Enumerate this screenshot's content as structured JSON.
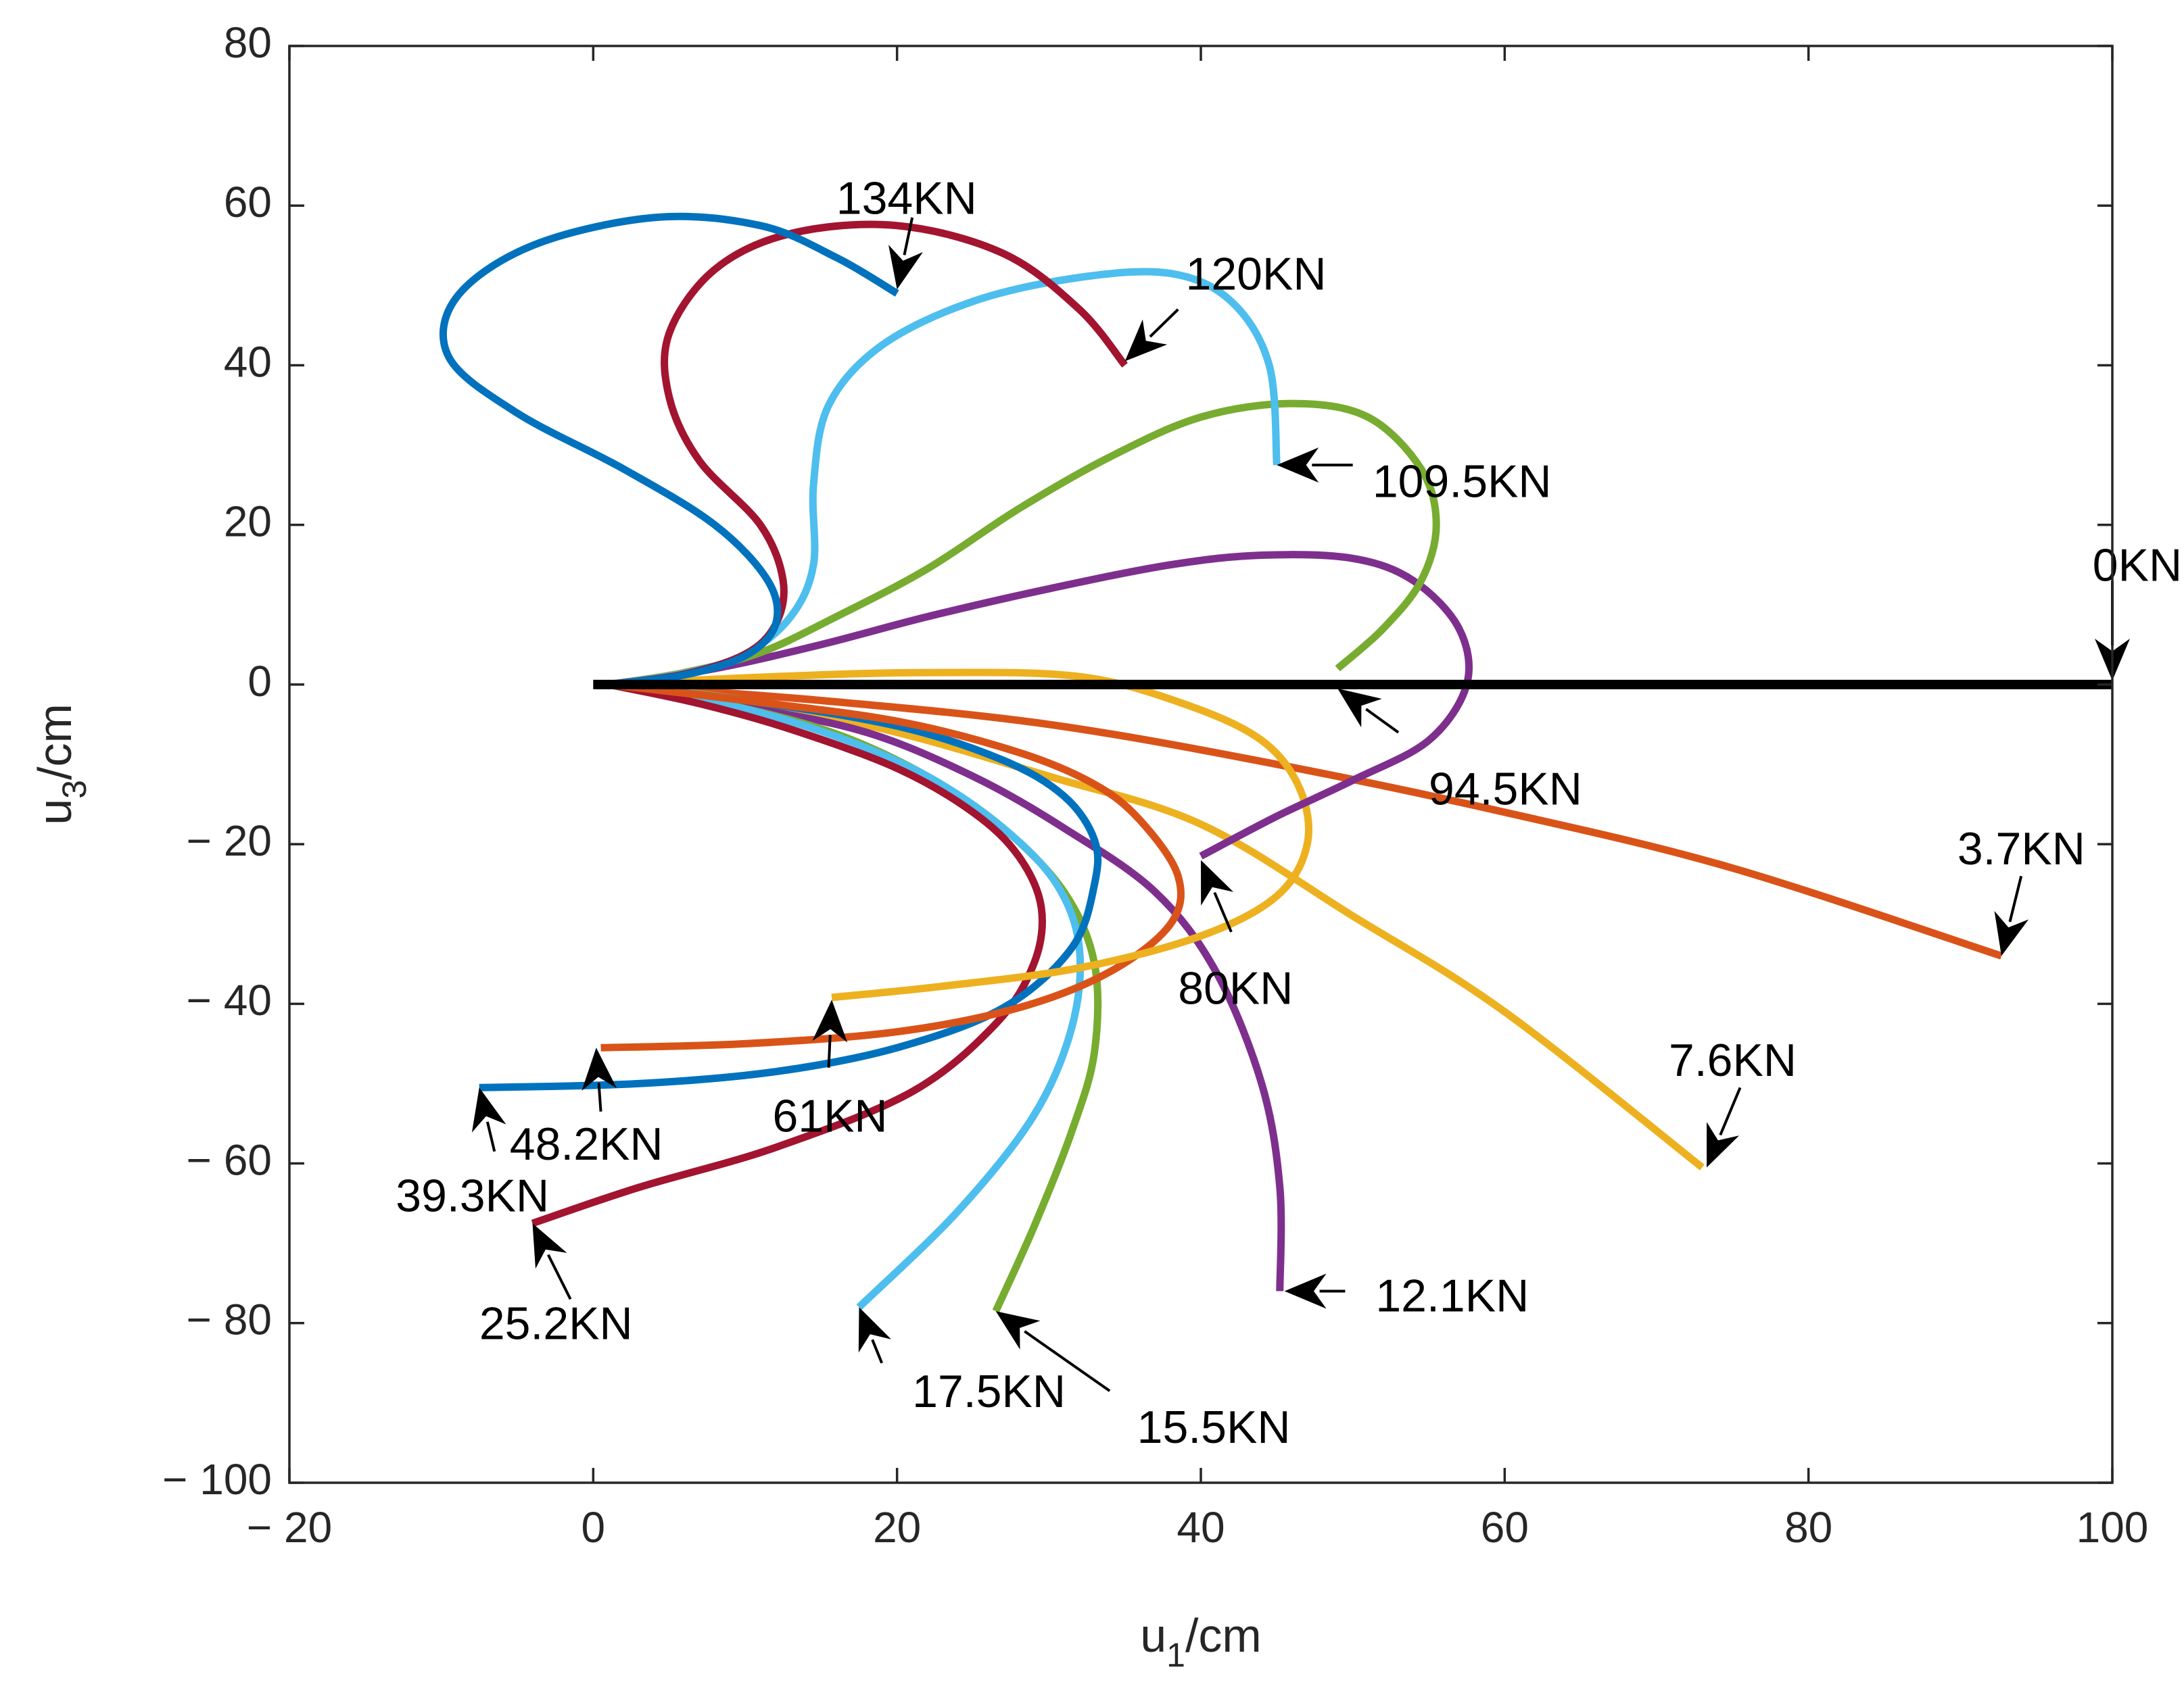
{
  "chart_data": {
    "type": "line",
    "title": "",
    "xlabel": {
      "main": "u",
      "sub": "1",
      "unit": "/cm"
    },
    "ylabel": {
      "main": "u",
      "sub": "3",
      "unit": "/cm"
    },
    "xlim": [
      -20,
      100
    ],
    "ylim": [
      -100,
      80
    ],
    "xticks": [
      -20,
      0,
      20,
      40,
      60,
      80,
      100
    ],
    "yticks": [
      -100,
      -80,
      -60,
      -40,
      -20,
      0,
      20,
      40,
      60,
      80
    ],
    "xtick_labels": [
      "− 20",
      "0",
      "20",
      "40",
      "60",
      "80",
      "100"
    ],
    "ytick_labels": [
      "− 100",
      "− 80",
      "− 60",
      "− 40",
      "− 20",
      "0",
      "20",
      "40",
      "60",
      "80"
    ],
    "grid": false,
    "series": [
      {
        "name": "0KN",
        "color": "#000000",
        "width": 14,
        "x": [
          0,
          100
        ],
        "y": [
          0,
          0
        ]
      },
      {
        "name": "3.7KN",
        "color": "#D95319",
        "x": [
          1,
          15,
          30,
          45,
          60,
          75,
          92.7
        ],
        "y": [
          0,
          -2,
          -5,
          -10,
          -16,
          -23,
          -34
        ]
      },
      {
        "name": "7.6KN",
        "color": "#EDB120",
        "x": [
          1,
          10,
          20,
          30,
          40,
          50,
          60,
          73
        ],
        "y": [
          0,
          -2,
          -6,
          -11.5,
          -17.5,
          -29,
          -41,
          -60.5
        ]
      },
      {
        "name": "12.1KN",
        "color": "#7E2F8E",
        "x": [
          1,
          10,
          18,
          25,
          31,
          37,
          41,
          44,
          45.2,
          45.2
        ],
        "y": [
          0,
          -2.8,
          -6,
          -11.5,
          -18,
          -26,
          -36,
          -50,
          -63,
          -76
        ]
      },
      {
        "name": "15.5KN",
        "color": "#77AC30",
        "x": [
          1,
          9,
          16,
          22,
          27,
          31,
          33,
          33,
          31.5,
          29,
          26.5
        ],
        "y": [
          0,
          -2.6,
          -6.2,
          -11.5,
          -18,
          -26,
          -35,
          -46,
          -56,
          -68,
          -78.5
        ]
      },
      {
        "name": "17.5KN",
        "color": "#4DBEEE",
        "x": [
          1,
          9,
          16,
          22,
          27,
          30.5,
          32,
          31.5,
          29,
          24,
          17.5
        ],
        "y": [
          0,
          -2.6,
          -6.5,
          -11.5,
          -18,
          -25,
          -33,
          -43,
          -54,
          -66,
          -78
        ]
      },
      {
        "name": "25.2KN",
        "color": "#A2142F",
        "x": [
          1,
          7,
          13,
          20,
          25,
          28,
          29.5,
          29,
          26.5,
          21,
          12,
          3,
          -4
        ],
        "y": [
          0,
          -2.4,
          -5.6,
          -10.5,
          -16,
          -21.5,
          -28,
          -35,
          -42.5,
          -51,
          -58,
          -63,
          -67.5
        ]
      },
      {
        "name": "39.3KN",
        "color": "#0072BD",
        "x": [
          1,
          10,
          20,
          27,
          31,
          33,
          33,
          31.5,
          27,
          20,
          12,
          3,
          -7.5
        ],
        "y": [
          0,
          -2,
          -5.2,
          -9.5,
          -14,
          -19.5,
          -25,
          -33,
          -40.5,
          -45.5,
          -48.5,
          -50,
          -50.5
        ]
      },
      {
        "name": "48.2KN",
        "color": "#D95319",
        "x": [
          1,
          10,
          20,
          28,
          33,
          36,
          38.5,
          38,
          34,
          28,
          20,
          10,
          0.5
        ],
        "y": [
          0,
          -2,
          -4.6,
          -8.5,
          -12.5,
          -17,
          -24,
          -30,
          -36,
          -40.5,
          -43.5,
          -45,
          -45.5
        ]
      },
      {
        "name": "61KN",
        "color": "#EDB120",
        "x": [
          1,
          12,
          22,
          32,
          39,
          44,
          46.5,
          47,
          45,
          40,
          32,
          23,
          15.7
        ],
        "y": [
          0,
          1,
          1.5,
          1,
          -2.5,
          -7,
          -13,
          -20,
          -26.5,
          -31.5,
          -35.5,
          -37.8,
          -39.2
        ]
      },
      {
        "name": "80KN",
        "color": "#7E2F8E",
        "x": [
          1,
          8,
          15,
          22,
          30,
          38,
          44,
          50,
          54,
          57,
          57.5,
          55,
          50,
          45,
          40
        ],
        "y": [
          0,
          2,
          5,
          8.5,
          12,
          15,
          16.2,
          15.8,
          13,
          7,
          0,
          -7,
          -12,
          -16.5,
          -21.5
        ]
      },
      {
        "name": "94.5KN",
        "color": "#77AC30",
        "x": [
          1,
          6,
          11,
          16,
          22,
          28,
          34,
          40,
          46,
          51,
          54.5,
          55.5,
          54.5,
          52,
          49
        ],
        "y": [
          0,
          1.5,
          4,
          8.5,
          14.5,
          22,
          28.5,
          33.5,
          35.2,
          33.5,
          27,
          20,
          13,
          7,
          2
        ]
      },
      {
        "name": "109.5KN",
        "color": "#4DBEEE",
        "x": [
          1,
          6,
          10,
          13,
          14.5,
          14.5,
          15.5,
          19,
          25,
          32,
          38,
          42,
          44.5,
          45
        ],
        "y": [
          0,
          1.4,
          3.8,
          8.5,
          15,
          25,
          35,
          42.5,
          48,
          51,
          51.5,
          48,
          40,
          27.5
        ]
      },
      {
        "name": "120KN",
        "color": "#A2142F",
        "x": [
          1,
          6,
          10,
          12,
          12.5,
          11,
          7,
          5,
          5,
          8,
          13,
          20,
          27,
          32,
          35
        ],
        "y": [
          0,
          1.3,
          3.8,
          7.5,
          13,
          20,
          28,
          36,
          44,
          52,
          56.5,
          57.5,
          54,
          47,
          40
        ]
      },
      {
        "name": "134KN",
        "color": "#0072BD",
        "x": [
          1,
          6,
          10,
          12,
          11.5,
          8,
          2,
          -5,
          -9.5,
          -9,
          -4,
          4,
          11,
          16,
          20
        ],
        "y": [
          0,
          1.2,
          3.6,
          7.5,
          13,
          20,
          27,
          34,
          41,
          48.5,
          55,
          58.5,
          57.5,
          53.5,
          49
        ]
      }
    ],
    "annotations": [
      {
        "text": "0KN",
        "tx": 98.7,
        "ty": 14.5,
        "hx": 100,
        "hy": 0.5,
        "sx": 100,
        "sy": 13
      },
      {
        "text": "3.7KN",
        "tx": 89.8,
        "ty": -21,
        "hx": 92.7,
        "hy": -34,
        "sx": 94,
        "sy": -24
      },
      {
        "text": "7.6KN",
        "tx": 70.8,
        "ty": -47.5,
        "hx": 73.3,
        "hy": -60.5,
        "sx": 75.5,
        "sy": -50.5
      },
      {
        "text": "12.1KN",
        "tx": 51.5,
        "ty": -77,
        "hx": 45.5,
        "hy": -76,
        "sx": 49.5,
        "sy": -76
      },
      {
        "text": "15.5KN",
        "tx": 35.8,
        "ty": -93.5,
        "hx": 26.5,
        "hy": -78.5,
        "sx": 34,
        "sy": -88.5
      },
      {
        "text": "17.5KN",
        "tx": 21,
        "ty": -89,
        "hx": 17.5,
        "hy": -78,
        "sx": 19,
        "sy": -85
      },
      {
        "text": "25.2KN",
        "tx": -7.5,
        "ty": -80.5,
        "hx": -4,
        "hy": -67.5,
        "sx": -1.5,
        "sy": -77
      },
      {
        "text": "39.3KN",
        "tx": -13,
        "ty": -64.5,
        "hx": -7.5,
        "hy": -50.5,
        "sx": -6.5,
        "sy": -58.5
      },
      {
        "text": "48.2KN",
        "tx": -5.5,
        "ty": -58,
        "hx": 0.2,
        "hy": -45.5,
        "sx": 0.5,
        "sy": -53.5
      },
      {
        "text": "61KN",
        "tx": 11.8,
        "ty": -54.5,
        "hx": 15.7,
        "hy": -39.5,
        "sx": 15.5,
        "sy": -48
      },
      {
        "text": "80KN",
        "tx": 38.5,
        "ty": -38.5,
        "hx": 40,
        "hy": -22,
        "sx": 42,
        "sy": -31
      },
      {
        "text": "94.5KN",
        "tx": 55,
        "ty": -13.5,
        "hx": 49,
        "hy": -0.5,
        "sx": 53,
        "sy": -6
      },
      {
        "text": "109.5KN",
        "tx": 51.3,
        "ty": 25,
        "hx": 45,
        "hy": 27.5,
        "sx": 50,
        "sy": 27.5
      },
      {
        "text": "120KN",
        "tx": 39,
        "ty": 51,
        "hx": 35,
        "hy": 40.5,
        "sx": 38.5,
        "sy": 47
      },
      {
        "text": "134KN",
        "tx": 16,
        "ty": 60.5,
        "hx": 20,
        "hy": 49.5,
        "sx": 21,
        "sy": 58.5
      }
    ]
  }
}
